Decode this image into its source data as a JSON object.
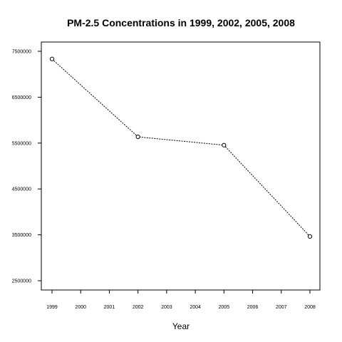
{
  "chart_data": {
    "type": "line",
    "title": "PM-2.5 Concentrations in 1999, 2002, 2005, 2008",
    "xlabel": "Year",
    "ylabel": "",
    "x": [
      1999,
      2002,
      2005,
      2008
    ],
    "series": [
      {
        "values": [
          7332967,
          5635780,
          5454703,
          3464206
        ],
        "line_style": "dotted",
        "marker": "open-circle",
        "color": "#000000"
      }
    ],
    "xlim": [
      1999,
      2008
    ],
    "ylim": [
      2500000,
      7500000
    ],
    "x_ticks": [
      1999,
      2000,
      2001,
      2002,
      2003,
      2004,
      2005,
      2006,
      2007,
      2008
    ],
    "x_tick_labels": [
      "1999",
      "2000",
      "2001",
      "2002",
      "2003",
      "2004",
      "2005",
      "2006",
      "2007",
      "2008"
    ],
    "y_ticks": [
      2500000,
      3500000,
      4500000,
      5500000,
      6500000,
      7500000
    ],
    "y_tick_labels": [
      "2500000",
      "3500000",
      "4500000",
      "5500000",
      "6500000",
      "7500000"
    ],
    "grid": false,
    "legend": "none"
  }
}
